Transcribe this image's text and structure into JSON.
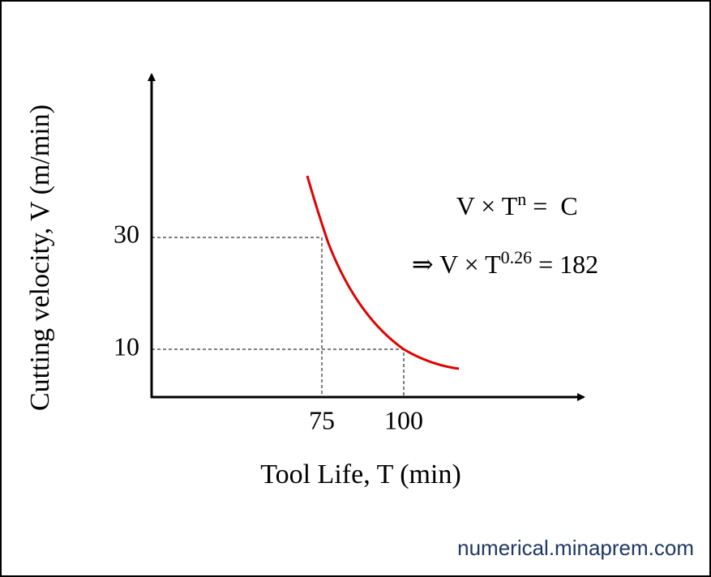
{
  "axis_labels": {
    "y": "Cutting velocity, V (m/min)",
    "x": "Tool Life, T (min)"
  },
  "x_tick_labels": [
    "75",
    "100"
  ],
  "y_tick_labels": [
    "30",
    "10"
  ],
  "equations": [
    {
      "base": "V × T",
      "exponent": "n",
      "rhs": " =  C"
    },
    {
      "base": "⇒ V × T",
      "exponent": "0.26",
      "rhs": " = 182"
    }
  ],
  "watermark": "numerical.minaprem.com"
}
